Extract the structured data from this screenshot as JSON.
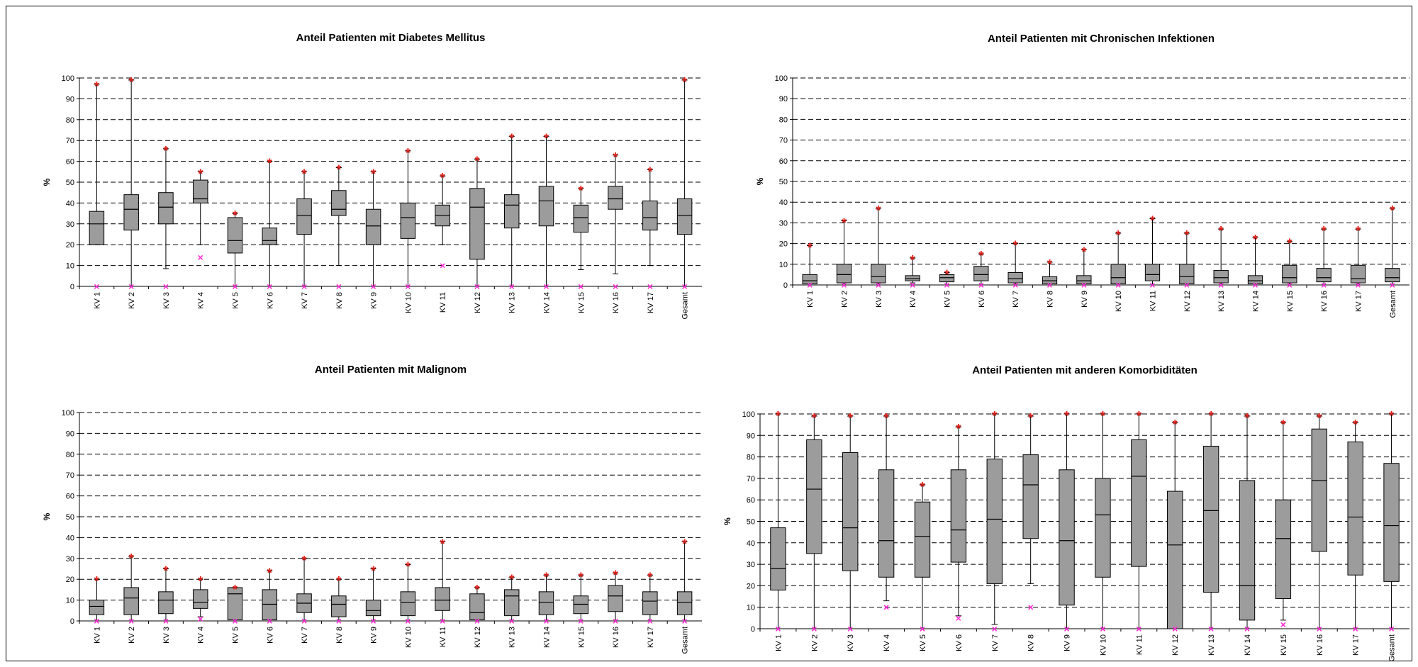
{
  "chart_data": [
    {
      "type": "box",
      "title": "Anteil Patienten mit Diabetes Mellitus",
      "ylabel": "%",
      "ylim": [
        0,
        100
      ],
      "yticks": [
        0,
        10,
        20,
        30,
        40,
        50,
        60,
        70,
        80,
        90,
        100
      ],
      "grid": true,
      "categories": [
        "KV 1",
        "KV 2",
        "KV 3",
        "KV 4",
        "KV 5",
        "KV 6",
        "KV 7",
        "KV 8",
        "KV 9",
        "KV 10",
        "KV 11",
        "KV 12",
        "KV 13",
        "KV 14",
        "KV 15",
        "KV 16",
        "KV 17",
        "Gesamt"
      ],
      "boxes": [
        {
          "wlo": 20,
          "q1": 20,
          "med": 30,
          "q3": 36,
          "whi": 97,
          "max": 97,
          "min": 0
        },
        {
          "wlo": 0,
          "q1": 27,
          "med": 37,
          "q3": 44,
          "whi": 99,
          "max": 99,
          "min": 0
        },
        {
          "wlo": 8.5,
          "q1": 30,
          "med": 38,
          "q3": 45,
          "whi": 66,
          "max": 66,
          "min": 0
        },
        {
          "wlo": 20,
          "q1": 40,
          "med": 42,
          "q3": 51,
          "whi": 55,
          "max": 55,
          "min": 14
        },
        {
          "wlo": 0,
          "q1": 16,
          "med": 22,
          "q3": 33,
          "whi": 35,
          "max": 35,
          "min": 0
        },
        {
          "wlo": 0,
          "q1": 20,
          "med": 22,
          "q3": 28,
          "whi": 60,
          "max": 60,
          "min": 0
        },
        {
          "wlo": 0,
          "q1": 25,
          "med": 34,
          "q3": 42,
          "whi": 55,
          "max": 55,
          "min": 0
        },
        {
          "wlo": 10,
          "q1": 34,
          "med": 37,
          "q3": 46,
          "whi": 57,
          "max": 57,
          "min": 0
        },
        {
          "wlo": 0,
          "q1": 20,
          "med": 29,
          "q3": 37,
          "whi": 55,
          "max": 55,
          "min": 0
        },
        {
          "wlo": 0,
          "q1": 23,
          "med": 33,
          "q3": 40,
          "whi": 65,
          "max": 65,
          "min": 0
        },
        {
          "wlo": 20,
          "q1": 29,
          "med": 34,
          "q3": 39,
          "whi": 53,
          "max": 53,
          "min": 10
        },
        {
          "wlo": 0,
          "q1": 13,
          "med": 38,
          "q3": 47,
          "whi": 61,
          "max": 61,
          "min": 0
        },
        {
          "wlo": 0,
          "q1": 28,
          "med": 39,
          "q3": 44,
          "whi": 72,
          "max": 72,
          "min": 0
        },
        {
          "wlo": 0,
          "q1": 29,
          "med": 41,
          "q3": 48,
          "whi": 72,
          "max": 72,
          "min": 0
        },
        {
          "wlo": 8,
          "q1": 26,
          "med": 33,
          "q3": 39,
          "whi": 47,
          "max": 47,
          "min": 0
        },
        {
          "wlo": 6,
          "q1": 37,
          "med": 42,
          "q3": 48,
          "whi": 63,
          "max": 63,
          "min": 0
        },
        {
          "wlo": 10,
          "q1": 27,
          "med": 33,
          "q3": 41,
          "whi": 56,
          "max": 56,
          "min": 0
        },
        {
          "wlo": 0,
          "q1": 25,
          "med": 34,
          "q3": 42,
          "whi": 99,
          "max": 99,
          "min": 0
        }
      ]
    },
    {
      "type": "box",
      "title": "Anteil Patienten mit Chronischen Infektionen",
      "ylabel": "%",
      "ylim": [
        0,
        100
      ],
      "yticks": [
        0,
        10,
        20,
        30,
        40,
        50,
        60,
        70,
        80,
        90,
        100
      ],
      "grid": true,
      "categories": [
        "KV 1",
        "KV 2",
        "KV 3",
        "KV 4",
        "KV 5",
        "KV 6",
        "KV 7",
        "KV 8",
        "KV 9",
        "KV 10",
        "KV 11",
        "KV 12",
        "KV 13",
        "KV 14",
        "KV 15",
        "KV 16",
        "KV 17",
        "Gesamt"
      ],
      "boxes": [
        {
          "wlo": 0,
          "q1": 0.5,
          "med": 2,
          "q3": 5,
          "whi": 19,
          "max": 19,
          "min": 0
        },
        {
          "wlo": 0,
          "q1": 1,
          "med": 5,
          "q3": 10,
          "whi": 31,
          "max": 31,
          "min": 0
        },
        {
          "wlo": 0,
          "q1": 1,
          "med": 4,
          "q3": 10,
          "whi": 37,
          "max": 37,
          "min": 0
        },
        {
          "wlo": 1,
          "q1": 2,
          "med": 3,
          "q3": 4.5,
          "whi": 13,
          "max": 13,
          "min": 0
        },
        {
          "wlo": 0,
          "q1": 1.5,
          "med": 3.5,
          "q3": 5,
          "whi": 6,
          "max": 6,
          "min": 0
        },
        {
          "wlo": 0,
          "q1": 2,
          "med": 5,
          "q3": 9,
          "whi": 15,
          "max": 15,
          "min": 0
        },
        {
          "wlo": 0,
          "q1": 1,
          "med": 3,
          "q3": 6,
          "whi": 20,
          "max": 20,
          "min": 0
        },
        {
          "wlo": 0,
          "q1": 0.5,
          "med": 2,
          "q3": 4,
          "whi": 11,
          "max": 11,
          "min": 0
        },
        {
          "wlo": 0,
          "q1": 0.5,
          "med": 2,
          "q3": 4.5,
          "whi": 17,
          "max": 17,
          "min": 0
        },
        {
          "wlo": 0,
          "q1": 0.5,
          "med": 3.5,
          "q3": 10,
          "whi": 25,
          "max": 25,
          "min": 0
        },
        {
          "wlo": 0,
          "q1": 2,
          "med": 5,
          "q3": 10,
          "whi": 32,
          "max": 32,
          "min": 0
        },
        {
          "wlo": 0,
          "q1": 0.5,
          "med": 4,
          "q3": 10,
          "whi": 25,
          "max": 25,
          "min": 0
        },
        {
          "wlo": 0,
          "q1": 1,
          "med": 3.5,
          "q3": 7,
          "whi": 27,
          "max": 27,
          "min": 0
        },
        {
          "wlo": 0,
          "q1": 0.5,
          "med": 2,
          "q3": 4.5,
          "whi": 23,
          "max": 23,
          "min": 0
        },
        {
          "wlo": 0,
          "q1": 1,
          "med": 3.5,
          "q3": 9.5,
          "whi": 21,
          "max": 21,
          "min": 0
        },
        {
          "wlo": 0,
          "q1": 1.5,
          "med": 3.5,
          "q3": 8,
          "whi": 27,
          "max": 27,
          "min": 0
        },
        {
          "wlo": 0,
          "q1": 1,
          "med": 3,
          "q3": 9.5,
          "whi": 27,
          "max": 27,
          "min": 0
        },
        {
          "wlo": 0,
          "q1": 1.5,
          "med": 3.5,
          "q3": 8,
          "whi": 37,
          "max": 37,
          "min": 0
        }
      ]
    },
    {
      "type": "box",
      "title": "Anteil Patienten mit Malignom",
      "ylabel": "%",
      "ylim": [
        0,
        100
      ],
      "yticks": [
        0,
        10,
        20,
        30,
        40,
        50,
        60,
        70,
        80,
        90,
        100
      ],
      "grid": true,
      "categories": [
        "KV 1",
        "KV 2",
        "KV 3",
        "KV 4",
        "KV 5",
        "KV 6",
        "KV 7",
        "KV 8",
        "KV 9",
        "KV 10",
        "KV 11",
        "KV 12",
        "KV 13",
        "KV 14",
        "KV 15",
        "KV 16",
        "KV 17",
        "Gesamt"
      ],
      "boxes": [
        {
          "wlo": 0,
          "q1": 3,
          "med": 7,
          "q3": 10,
          "whi": 20,
          "max": 20,
          "min": 0
        },
        {
          "wlo": 0,
          "q1": 3,
          "med": 11,
          "q3": 16,
          "whi": 31,
          "max": 31,
          "min": 0
        },
        {
          "wlo": 0,
          "q1": 3.5,
          "med": 10,
          "q3": 14,
          "whi": 25,
          "max": 25,
          "min": 0
        },
        {
          "wlo": 2,
          "q1": 6,
          "med": 9,
          "q3": 15,
          "whi": 20,
          "max": 20,
          "min": 1
        },
        {
          "wlo": 0,
          "q1": 0.5,
          "med": 13,
          "q3": 16,
          "whi": 16,
          "max": 16,
          "min": 0
        },
        {
          "wlo": 0,
          "q1": 0.5,
          "med": 8,
          "q3": 15,
          "whi": 24,
          "max": 24,
          "min": 0
        },
        {
          "wlo": 0,
          "q1": 4,
          "med": 8.5,
          "q3": 13,
          "whi": 30,
          "max": 30,
          "min": 0
        },
        {
          "wlo": 0,
          "q1": 2,
          "med": 8,
          "q3": 12,
          "whi": 20,
          "max": 20,
          "min": 0
        },
        {
          "wlo": 0,
          "q1": 2.5,
          "med": 5,
          "q3": 10,
          "whi": 25,
          "max": 25,
          "min": 0
        },
        {
          "wlo": 0,
          "q1": 2.5,
          "med": 9,
          "q3": 14,
          "whi": 27,
          "max": 27,
          "min": 0
        },
        {
          "wlo": 0,
          "q1": 5,
          "med": 10,
          "q3": 16,
          "whi": 38,
          "max": 38,
          "min": 0
        },
        {
          "wlo": 0,
          "q1": 0.5,
          "med": 4,
          "q3": 13,
          "whi": 16,
          "max": 16,
          "min": 0
        },
        {
          "wlo": 0,
          "q1": 2.5,
          "med": 12,
          "q3": 15,
          "whi": 21,
          "max": 21,
          "min": 0
        },
        {
          "wlo": 0,
          "q1": 3,
          "med": 9,
          "q3": 14,
          "whi": 22,
          "max": 22,
          "min": 0
        },
        {
          "wlo": 0,
          "q1": 3.5,
          "med": 8,
          "q3": 12,
          "whi": 22,
          "max": 22,
          "min": 0
        },
        {
          "wlo": 0,
          "q1": 4.5,
          "med": 12,
          "q3": 17,
          "whi": 23,
          "max": 23,
          "min": 0
        },
        {
          "wlo": 0,
          "q1": 3,
          "med": 9.5,
          "q3": 14,
          "whi": 22,
          "max": 22,
          "min": 0
        },
        {
          "wlo": 0,
          "q1": 3,
          "med": 9,
          "q3": 14,
          "whi": 38,
          "max": 38,
          "min": 0
        }
      ]
    },
    {
      "type": "box",
      "title": "Anteil Patienten mit anderen Komorbiditäten",
      "ylabel": "%",
      "ylim": [
        0,
        100
      ],
      "yticks": [
        0,
        10,
        20,
        30,
        40,
        50,
        60,
        70,
        80,
        90,
        100
      ],
      "grid": true,
      "categories": [
        "KV 1",
        "KV 2",
        "KV 3",
        "KV 4",
        "KV 5",
        "KV 6",
        "KV 7",
        "KV 8",
        "KV 9",
        "KV 10",
        "KV 11",
        "KV 12",
        "KV 13",
        "KV 14",
        "KV 15",
        "KV 16",
        "KV 17",
        "Gesamt"
      ],
      "boxes": [
        {
          "wlo": 0,
          "q1": 18,
          "med": 28,
          "q3": 47,
          "whi": 100,
          "max": 100,
          "min": 0
        },
        {
          "wlo": 0,
          "q1": 35,
          "med": 65,
          "q3": 88,
          "whi": 99,
          "max": 99,
          "min": 0
        },
        {
          "wlo": 0,
          "q1": 27,
          "med": 47,
          "q3": 82,
          "whi": 99,
          "max": 99,
          "min": 0
        },
        {
          "wlo": 13,
          "q1": 24,
          "med": 41,
          "q3": 74,
          "whi": 99,
          "max": 99,
          "min": 10
        },
        {
          "wlo": 0,
          "q1": 24,
          "med": 43,
          "q3": 59,
          "whi": 67,
          "max": 67,
          "min": 0
        },
        {
          "wlo": 6,
          "q1": 31,
          "med": 46,
          "q3": 74,
          "whi": 94,
          "max": 94,
          "min": 5
        },
        {
          "wlo": 2,
          "q1": 21,
          "med": 51,
          "q3": 79,
          "whi": 100,
          "max": 100,
          "min": 0
        },
        {
          "wlo": 21,
          "q1": 42,
          "med": 67,
          "q3": 81,
          "whi": 99,
          "max": 99,
          "min": 10
        },
        {
          "wlo": 0,
          "q1": 11,
          "med": 41,
          "q3": 74,
          "whi": 100,
          "max": 100,
          "min": 0
        },
        {
          "wlo": 0,
          "q1": 24,
          "med": 53,
          "q3": 70,
          "whi": 100,
          "max": 100,
          "min": 0
        },
        {
          "wlo": 0,
          "q1": 29,
          "med": 71,
          "q3": 88,
          "whi": 100,
          "max": 100,
          "min": 0
        },
        {
          "wlo": 0,
          "q1": 0,
          "med": 39,
          "q3": 64,
          "whi": 96,
          "max": 96,
          "min": 0
        },
        {
          "wlo": 0,
          "q1": 17,
          "med": 55,
          "q3": 85,
          "whi": 100,
          "max": 100,
          "min": 0
        },
        {
          "wlo": 0,
          "q1": 4,
          "med": 20,
          "q3": 69,
          "whi": 99,
          "max": 99,
          "min": 0
        },
        {
          "wlo": 4,
          "q1": 14,
          "med": 42,
          "q3": 60,
          "whi": 96,
          "max": 96,
          "min": 2
        },
        {
          "wlo": 0,
          "q1": 36,
          "med": 69,
          "q3": 93,
          "whi": 99,
          "max": 99,
          "min": 0
        },
        {
          "wlo": 0,
          "q1": 25,
          "med": 52,
          "q3": 87,
          "whi": 96,
          "max": 96,
          "min": 0
        },
        {
          "wlo": 0,
          "q1": 22,
          "med": 48,
          "q3": 77,
          "whi": 100,
          "max": 100,
          "min": 0
        }
      ]
    }
  ],
  "colors": {
    "box_fill": "#9c9c9c",
    "max_marker": "#e0201a",
    "min_marker": "#ff2ad4",
    "axis": "#000000",
    "grid": "#000000"
  },
  "markers": {
    "max_symbol": "*",
    "min_symbol": "×"
  }
}
